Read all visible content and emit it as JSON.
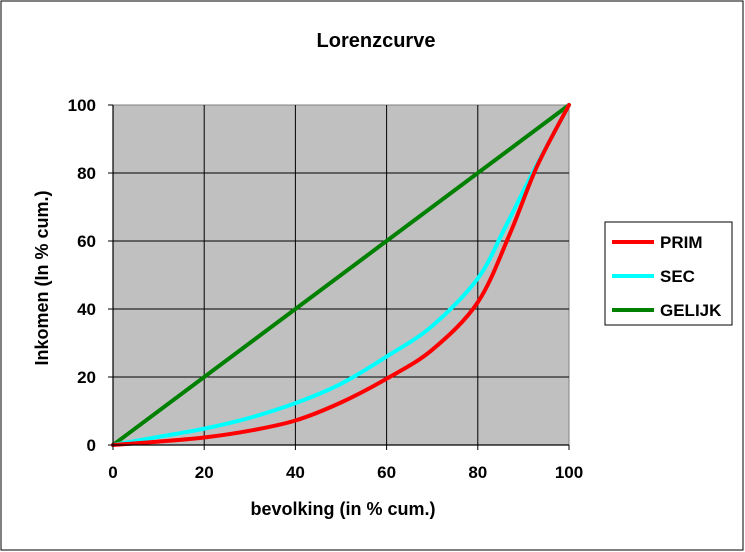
{
  "chart_data": {
    "type": "line",
    "title": "Lorenzcurve",
    "xlabel": "bevolking (in % cum.)",
    "ylabel": "Inkomen (In % cum.)",
    "xlim": [
      0,
      100
    ],
    "ylim": [
      0,
      100
    ],
    "x_ticks": [
      0,
      20,
      40,
      60,
      80,
      100
    ],
    "y_ticks": [
      0,
      20,
      40,
      60,
      80,
      100
    ],
    "grid": true,
    "plot_background": "#c0c0c0",
    "legend_position": "right",
    "series": [
      {
        "name": "PRIM",
        "color": "#ff0000",
        "points": [
          [
            0,
            0
          ],
          [
            10,
            1
          ],
          [
            20,
            2.2
          ],
          [
            30,
            4.2
          ],
          [
            40,
            7.2
          ],
          [
            50,
            12.5
          ],
          [
            60,
            19.5
          ],
          [
            70,
            28
          ],
          [
            80,
            42
          ],
          [
            87,
            62
          ],
          [
            93,
            82
          ],
          [
            100,
            100
          ]
        ]
      },
      {
        "name": "SEC",
        "color": "#00ffff",
        "points": [
          [
            0,
            0
          ],
          [
            10,
            2.4
          ],
          [
            20,
            4.8
          ],
          [
            30,
            8
          ],
          [
            40,
            12.3
          ],
          [
            50,
            18
          ],
          [
            60,
            26
          ],
          [
            70,
            35
          ],
          [
            80,
            49
          ],
          [
            86,
            64
          ],
          [
            92,
            80
          ],
          [
            100,
            100
          ]
        ]
      },
      {
        "name": "GELIJK",
        "color": "#008000",
        "points": [
          [
            0,
            0
          ],
          [
            100,
            100
          ]
        ]
      }
    ]
  }
}
